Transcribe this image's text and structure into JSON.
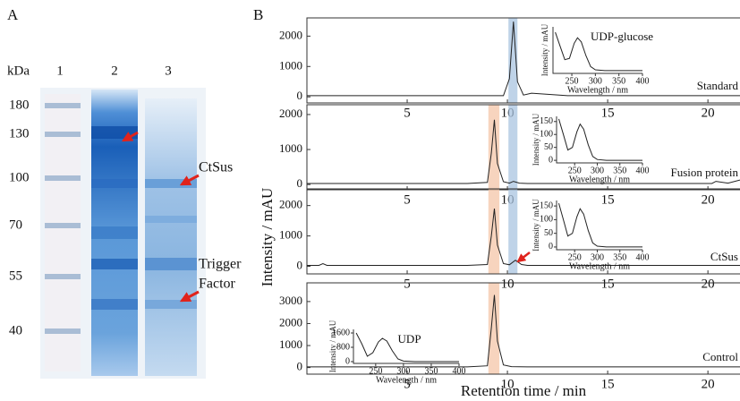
{
  "gel": {
    "label": "A",
    "unit": "kDa",
    "lanes": [
      "1",
      "2",
      "3"
    ],
    "markers": [
      180,
      130,
      100,
      70,
      55,
      40
    ],
    "annotations": [
      "CtSus",
      "Trigger",
      "Factor"
    ]
  },
  "panel_b": {
    "label": "B",
    "ylabel": "Intensity / mAU",
    "xlabel": "Retention time / min"
  },
  "chart_data": [
    {
      "type": "line",
      "name": "Standard",
      "color": "#222222",
      "x": [
        0,
        2,
        4,
        6,
        8,
        9.8,
        10.1,
        10.3,
        10.5,
        10.8,
        11.2,
        13,
        15,
        17,
        19,
        21.6
      ],
      "values": [
        40,
        40,
        40,
        40,
        40,
        40,
        600,
        2480,
        500,
        60,
        120,
        40,
        40,
        40,
        40,
        40
      ],
      "xlim": [
        0,
        21.6
      ],
      "ylim": [
        -200,
        2600
      ],
      "yticks": [
        0,
        1000,
        2000
      ],
      "xticks": [
        5,
        10,
        15,
        20
      ],
      "bands": [
        {
          "range": [
            10.05,
            10.5
          ],
          "color": "#a9c4e0"
        }
      ],
      "inset": {
        "title": "UDP-glucose",
        "xlabel": "Wavelength / nm",
        "ylabel": "Intensity / mAU",
        "xlim": [
          210,
          400
        ],
        "ylim": [
          -10,
          160
        ],
        "xticks": [
          250,
          300,
          350,
          400
        ],
        "x": [
          215,
          225,
          235,
          245,
          255,
          262,
          270,
          280,
          290,
          300,
          320,
          350,
          400
        ],
        "values": [
          140,
          90,
          40,
          45,
          100,
          120,
          105,
          55,
          15,
          3,
          0,
          0,
          0
        ]
      }
    },
    {
      "type": "line",
      "name": "Fusion protein",
      "color": "#222222",
      "x": [
        0,
        2,
        4,
        6,
        8,
        9.0,
        9.2,
        9.35,
        9.5,
        9.8,
        10.1,
        10.3,
        10.6,
        11,
        13,
        15,
        17,
        19,
        20.2,
        20.4,
        21,
        21.6
      ],
      "values": [
        30,
        30,
        30,
        30,
        30,
        60,
        900,
        1850,
        600,
        80,
        40,
        90,
        40,
        30,
        30,
        30,
        30,
        30,
        30,
        90,
        40,
        130
      ],
      "xlim": [
        0,
        21.6
      ],
      "ylim": [
        -150,
        2280
      ],
      "yticks": [
        0,
        1000,
        2000
      ],
      "xticks": [
        5,
        10,
        15,
        20
      ],
      "bands": [
        {
          "range": [
            9.05,
            9.6
          ],
          "color": "#f4c6a8"
        },
        {
          "range": [
            10.05,
            10.5
          ],
          "color": "#a9c4e0"
        }
      ],
      "inset": {
        "xlabel": "Wavelength / nm",
        "ylabel": "Intensity / mAU",
        "xlim": [
          210,
          400
        ],
        "ylim": [
          -10,
          170
        ],
        "xticks": [
          250,
          300,
          350,
          400
        ],
        "yticks": [
          0,
          50,
          100,
          150
        ],
        "x": [
          215,
          225,
          235,
          245,
          255,
          262,
          270,
          280,
          290,
          300,
          320,
          350,
          400
        ],
        "values": [
          160,
          100,
          40,
          50,
          110,
          140,
          120,
          60,
          15,
          3,
          0,
          0,
          0
        ]
      }
    },
    {
      "type": "line",
      "name": "CtSus",
      "color": "#222222",
      "x": [
        0,
        0.6,
        0.8,
        1.0,
        2,
        4,
        6,
        8,
        9.0,
        9.2,
        9.35,
        9.5,
        9.8,
        10.1,
        10.4,
        10.7,
        11,
        13,
        15,
        17,
        19,
        21.6
      ],
      "values": [
        30,
        30,
        90,
        30,
        30,
        30,
        30,
        30,
        60,
        1000,
        1900,
        700,
        90,
        50,
        200,
        60,
        30,
        30,
        30,
        30,
        30,
        30
      ],
      "xlim": [
        0,
        21.6
      ],
      "ylim": [
        -250,
        2550
      ],
      "yticks": [
        0,
        1000,
        2000
      ],
      "xticks": [
        5,
        10,
        15,
        20
      ],
      "bands": [
        {
          "range": [
            9.05,
            9.6
          ],
          "color": "#f4c6a8"
        },
        {
          "range": [
            10.05,
            10.5
          ],
          "color": "#a9c4e0"
        }
      ],
      "inset": {
        "xlabel": "Wavelength / nm",
        "ylabel": "Intensity / mAU",
        "xlim": [
          210,
          400
        ],
        "ylim": [
          -10,
          170
        ],
        "xticks": [
          250,
          300,
          350,
          400
        ],
        "yticks": [
          0,
          50,
          100,
          150
        ],
        "x": [
          215,
          225,
          235,
          245,
          255,
          262,
          270,
          280,
          290,
          300,
          320,
          350,
          400
        ],
        "values": [
          160,
          100,
          40,
          50,
          110,
          140,
          120,
          60,
          15,
          3,
          0,
          0,
          0
        ]
      }
    },
    {
      "type": "line",
      "name": "Control",
      "color": "#222222",
      "x": [
        0,
        2,
        4,
        6,
        8,
        9.0,
        9.2,
        9.35,
        9.5,
        9.8,
        10.2,
        11,
        13,
        15,
        17,
        19,
        21.6
      ],
      "values": [
        30,
        30,
        30,
        30,
        30,
        80,
        1800,
        3300,
        1200,
        120,
        40,
        30,
        30,
        30,
        30,
        30,
        30
      ],
      "xlim": [
        0,
        21.6
      ],
      "ylim": [
        -300,
        3850
      ],
      "yticks": [
        0,
        1000,
        2000,
        3000
      ],
      "xticks": [
        5,
        10,
        15,
        20
      ],
      "bands": [
        {
          "range": [
            9.05,
            9.6
          ],
          "color": "#f4c6a8"
        }
      ],
      "inset": {
        "title": "UDP",
        "xlabel": "Wavelength / nm",
        "ylabel": "Intensity / mAU",
        "xlim": [
          210,
          400
        ],
        "ylim": [
          -100,
          1800
        ],
        "xticks": [
          250,
          300,
          350,
          400
        ],
        "yticks": [
          0,
          800,
          1600
        ],
        "x": [
          215,
          225,
          235,
          245,
          255,
          262,
          270,
          280,
          290,
          300,
          320,
          350,
          400
        ],
        "values": [
          1600,
          1000,
          300,
          500,
          1100,
          1300,
          1150,
          600,
          150,
          30,
          0,
          0,
          0
        ]
      }
    }
  ]
}
